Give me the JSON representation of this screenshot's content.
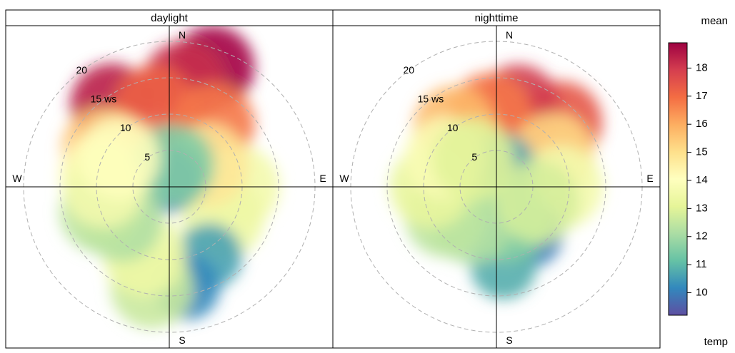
{
  "chart_data": {
    "type": "heatmap",
    "subtype": "polar-plot",
    "panels": [
      {
        "name": "daylight",
        "blobs": [
          {
            "dir": 20,
            "ws": 17.5,
            "value": 18.8
          },
          {
            "dir": 8,
            "ws": 14.5,
            "value": 18.2
          },
          {
            "dir": -35,
            "ws": 13.8,
            "value": 18.4
          },
          {
            "dir": -10,
            "ws": 11.2,
            "value": 17.2
          },
          {
            "dir": 35,
            "ws": 10.5,
            "value": 16.8
          },
          {
            "dir": -60,
            "ws": 10.5,
            "value": 15.6
          },
          {
            "dir": -80,
            "ws": 9.5,
            "value": 14.2
          },
          {
            "dir": 90,
            "ws": 9.5,
            "value": 13.6
          },
          {
            "dir": 120,
            "ws": 8.5,
            "value": 13.4
          },
          {
            "dir": 60,
            "ws": 6,
            "value": 14.8
          },
          {
            "dir": 0,
            "ws": 1,
            "value": 9.8
          },
          {
            "dir": 10,
            "ws": 3,
            "value": 11.5
          },
          {
            "dir": 150,
            "ws": 11,
            "value": 10.6
          },
          {
            "dir": 170,
            "ws": 14,
            "value": 10.2
          },
          {
            "dir": 190,
            "ws": 14,
            "value": 12.6
          },
          {
            "dir": 200,
            "ws": 10,
            "value": 13.4
          },
          {
            "dir": 235,
            "ws": 8,
            "value": 12.2
          },
          {
            "dir": 250,
            "ws": 10,
            "value": 12.4
          },
          {
            "dir": 270,
            "ws": 9,
            "value": 13.6
          },
          {
            "dir": 300,
            "ws": 8,
            "value": 14.0
          }
        ]
      },
      {
        "name": "nighttime",
        "blobs": [
          {
            "dir": 45,
            "ws": 12.5,
            "value": 17.4
          },
          {
            "dir": 15,
            "ws": 11.5,
            "value": 18.0
          },
          {
            "dir": -5,
            "ws": 10,
            "value": 16.8
          },
          {
            "dir": -35,
            "ws": 10,
            "value": 15.8
          },
          {
            "dir": 60,
            "ws": 9,
            "value": 15.2
          },
          {
            "dir": 90,
            "ws": 9,
            "value": 13.6
          },
          {
            "dir": 0,
            "ws": 0.5,
            "value": 9.6
          },
          {
            "dir": 15,
            "ws": 3,
            "value": 10.6
          },
          {
            "dir": 145,
            "ws": 8,
            "value": 10.0
          },
          {
            "dir": 175,
            "ws": 11,
            "value": 10.8
          },
          {
            "dir": 160,
            "ws": 5,
            "value": 11.6
          },
          {
            "dir": 215,
            "ws": 6,
            "value": 12.2
          },
          {
            "dir": 240,
            "ws": 8,
            "value": 12.4
          },
          {
            "dir": 270,
            "ws": 9,
            "value": 13.2
          },
          {
            "dir": 300,
            "ws": 8,
            "value": 13.8
          },
          {
            "dir": 320,
            "ws": 5,
            "value": 13.0
          },
          {
            "dir": 110,
            "ws": 6,
            "value": 12.8
          }
        ]
      }
    ],
    "radial_scale": {
      "label_suffix": " ws",
      "rings": [
        5,
        10,
        15,
        20
      ],
      "max": 20
    },
    "compass_labels": [
      "N",
      "E",
      "S",
      "W"
    ],
    "colorbar": {
      "title": "mean",
      "label": "temp",
      "min": 9.2,
      "max": 18.9,
      "ticks": [
        10,
        11,
        12,
        13,
        14,
        15,
        16,
        17,
        18
      ],
      "palette": [
        "#5E4FA2",
        "#3288BD",
        "#66C2A5",
        "#ABDDA4",
        "#E6F598",
        "#FFFFBF",
        "#FEE08B",
        "#FDAE61",
        "#F46D43",
        "#D53E4F",
        "#9E0142"
      ]
    }
  }
}
